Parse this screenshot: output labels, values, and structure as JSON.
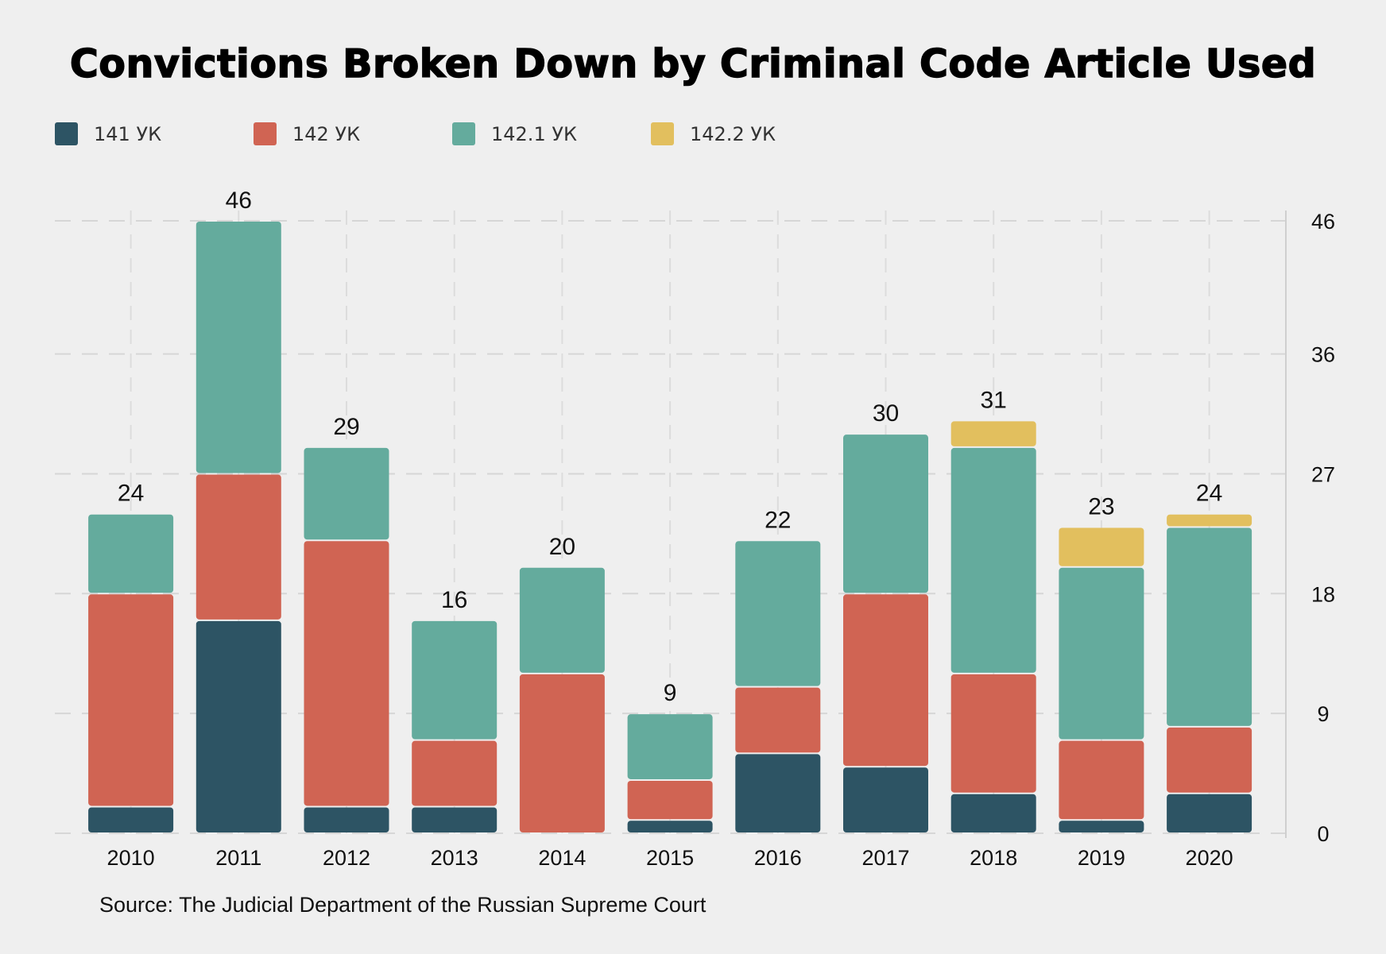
{
  "chart_data": {
    "type": "bar",
    "stacked": true,
    "title": "Convictions Broken Down by Criminal Code Article Used",
    "source": "Source: The Judicial Department of the Russian Supreme Court",
    "categories": [
      "2010",
      "2011",
      "2012",
      "2013",
      "2014",
      "2015",
      "2016",
      "2017",
      "2018",
      "2019",
      "2020"
    ],
    "series": [
      {
        "name": "141 УК",
        "color": "#2d5464",
        "values": [
          2,
          16,
          2,
          2,
          0,
          1,
          6,
          5,
          3,
          1,
          3
        ]
      },
      {
        "name": "142 УК",
        "color": "#d06453",
        "values": [
          16,
          11,
          20,
          5,
          12,
          3,
          5,
          13,
          9,
          6,
          5
        ]
      },
      {
        "name": "142.1 УК",
        "color": "#64ab9d",
        "values": [
          6,
          19,
          7,
          9,
          8,
          5,
          11,
          12,
          17,
          13,
          15
        ]
      },
      {
        "name": "142.2 УК",
        "color": "#e2bf5e",
        "values": [
          0,
          0,
          0,
          0,
          0,
          0,
          0,
          0,
          2,
          3,
          1
        ]
      }
    ],
    "totals": [
      24,
      46,
      29,
      16,
      20,
      9,
      22,
      30,
      31,
      23,
      24
    ],
    "yticks": [
      0,
      9,
      18,
      27,
      36,
      46
    ],
    "ylim": [
      0,
      46
    ],
    "y_axis_side": "right",
    "grid": true,
    "legend_position": "top-left",
    "background": "#efefef"
  }
}
